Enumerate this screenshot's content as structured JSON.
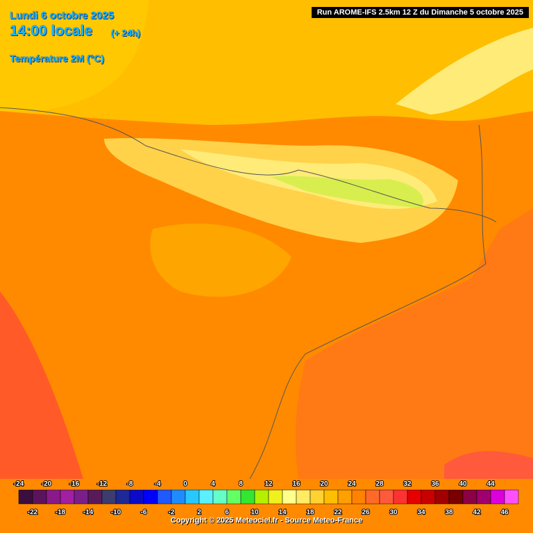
{
  "header": {
    "date": "Lundi 6 octobre 2025",
    "time": "14:00 locale",
    "lead": "(+ 24h)",
    "field": "Température 2M (°C)",
    "run": "Run AROME-IFS 2.5km 12 Z du Dimanche 5 octobre 2025"
  },
  "colorbar": {
    "values": [
      -24,
      -22,
      -20,
      -18,
      -16,
      -14,
      -12,
      -10,
      -8,
      -6,
      -4,
      -2,
      0,
      2,
      4,
      6,
      8,
      10,
      12,
      14,
      16,
      18,
      20,
      22,
      24,
      26,
      28,
      30,
      32,
      34,
      36,
      38,
      40,
      42,
      44,
      46
    ],
    "colors": [
      "#3a0f3f",
      "#5c135c",
      "#8a1a8a",
      "#a11fa1",
      "#7a1f8a",
      "#5a1a5a",
      "#3c3c6e",
      "#1e2896",
      "#0a0ac8",
      "#0000ff",
      "#1e5aff",
      "#1e8cff",
      "#28c8ff",
      "#5af0ff",
      "#64ffc8",
      "#64ff64",
      "#32e632",
      "#b4f000",
      "#f0f01e",
      "#ffff8c",
      "#ffeb64",
      "#ffd232",
      "#ffbe00",
      "#ffa000",
      "#ff8200",
      "#ff6a28",
      "#ff5a3c",
      "#ff3232",
      "#e60000",
      "#c80000",
      "#a00000",
      "#780000",
      "#8c0046",
      "#a0006e",
      "#dc00dc",
      "#ff50ff"
    ]
  },
  "footer": {
    "copyright": "Copyright © 2025 Meteociel.fr - Source Meteo-France"
  }
}
